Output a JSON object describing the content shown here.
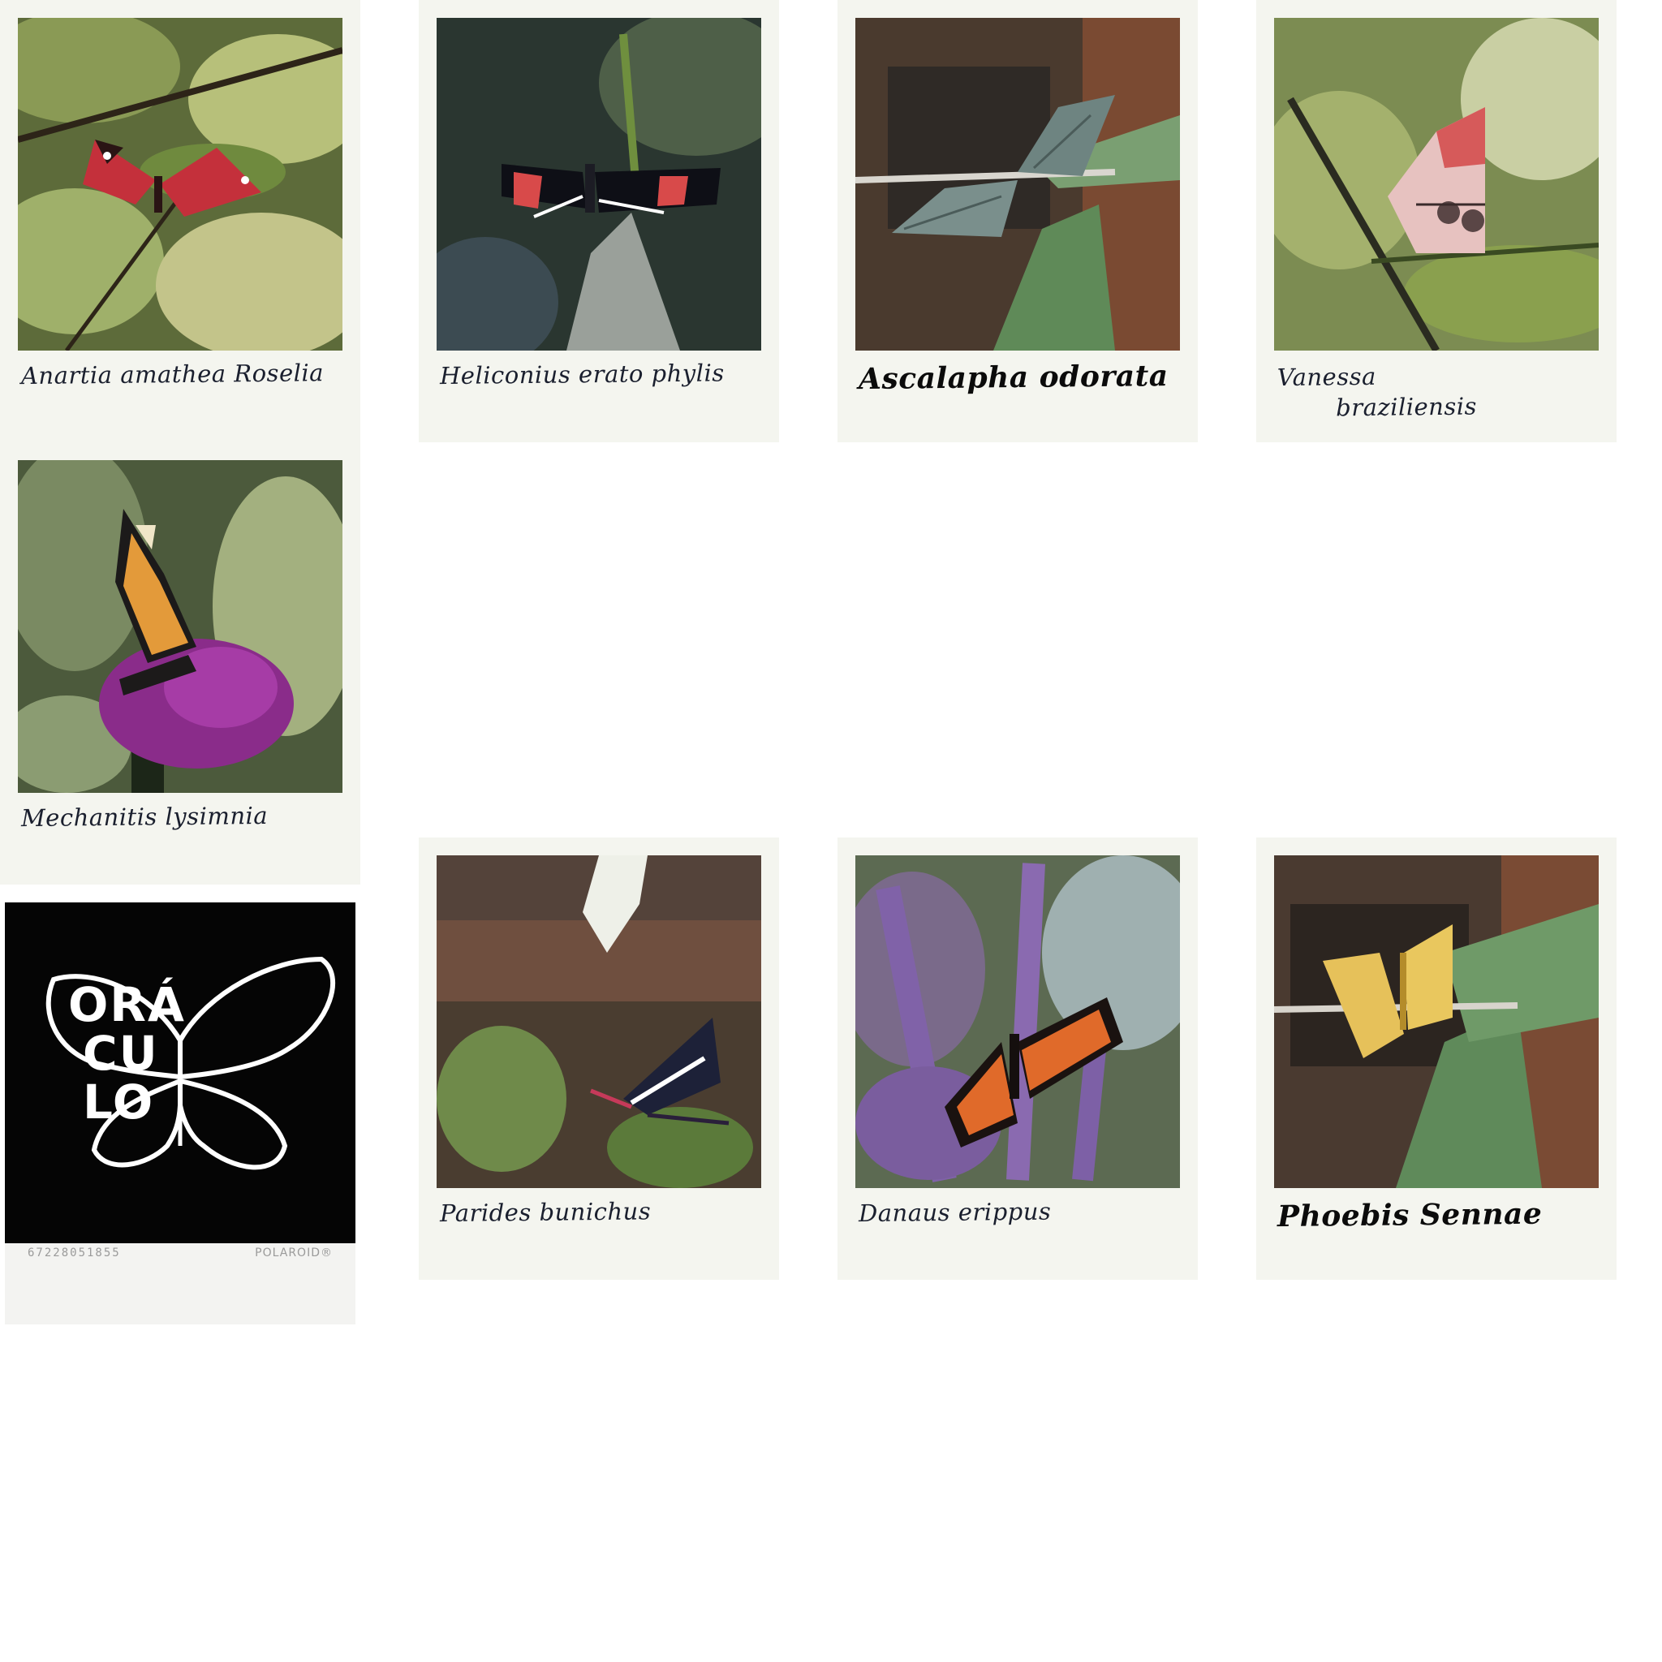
{
  "cards": [
    {
      "caption": "Anartia amathea Roselia"
    },
    {
      "caption": "Heliconius erato phylis"
    },
    {
      "caption": "Ascalapha odorata"
    },
    {
      "caption_line1": "Vanessa",
      "caption_line2": "braziliensis"
    },
    {
      "caption": "Mechanitis lysimnia"
    },
    {
      "logo_line1": "ORÁ",
      "logo_line2": "CU",
      "logo_line3": "LO",
      "serial": "67228051855",
      "brand": "POLAROID®"
    },
    {
      "caption": "Parides bunichus"
    },
    {
      "caption": "Danaus erippus"
    },
    {
      "caption": "Phoebis Sennae"
    }
  ],
  "colors": {
    "card_frame": "#f4f5ef",
    "ink": "#1a1f2e",
    "logo_bg": "#050505"
  }
}
